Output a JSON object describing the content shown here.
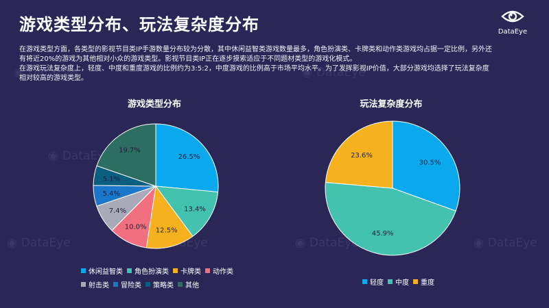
{
  "page": {
    "title": "游戏类型分布、玩法复杂度分布",
    "logo_text": "DataEye",
    "watermark_text": "DataEye",
    "description": [
      "在游戏类型方面，各类型的影视节目类IP手游数量分布较为分散，其中休闲益智类游戏数量最多，角色扮演类、卡牌类和动作类游戏均占据一定比例，另外还有将近20%的游戏为其他相对小众的游戏类型。影视节目类IP正在逐步摸索适应于不同题材类型的游戏化模式。",
      "在游戏玩法复杂度上，轻度、中度和重度游戏的比例约为3:5:2，中度游戏的比例高于市场平均水平。为了发挥影视IP价值，大部分游戏均选择了玩法复杂度相对较高的游戏类型。"
    ]
  },
  "chart_data": [
    {
      "type": "pie",
      "title": "游戏类型分布",
      "labels": [
        "休闲益智类",
        "角色扮演类",
        "卡牌类",
        "动作类",
        "射击类",
        "冒险类",
        "策略类",
        "其他"
      ],
      "values": [
        26.5,
        13.4,
        12.5,
        10.0,
        7.4,
        5.4,
        5.1,
        19.7
      ],
      "value_labels": [
        "26.5%",
        "13.4%",
        "12.5%",
        "10.0%",
        "7.4%",
        "5.4%",
        "5.1%",
        "19.7%"
      ],
      "colors": [
        "#0aa9ee",
        "#43c2b0",
        "#f6b21e",
        "#f26f7f",
        "#a9aab8",
        "#1a77c9",
        "#0a5f80",
        "#2c6e62"
      ],
      "legend_position": "bottom"
    },
    {
      "type": "pie",
      "title": "玩法复杂度分布",
      "labels": [
        "轻度",
        "中度",
        "重度"
      ],
      "values": [
        30.5,
        45.9,
        23.6
      ],
      "value_labels": [
        "30.5%",
        "45.9%",
        "23.6%"
      ],
      "colors": [
        "#0aa9ee",
        "#43c2b0",
        "#f6b21e"
      ],
      "legend_position": "bottom"
    }
  ]
}
